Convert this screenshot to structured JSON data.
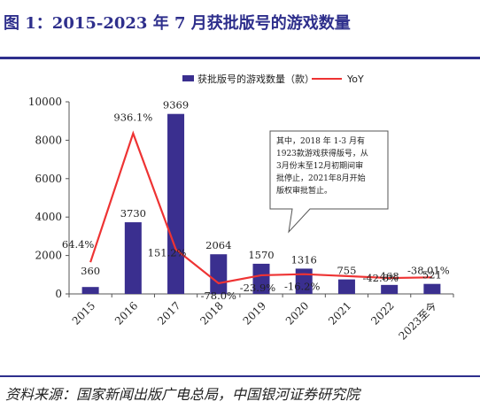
{
  "figure": {
    "title": "图 1：2015-2023 年 7 月获批版号的游戏数量",
    "source": "资料来源：国家新闻出版广电总局，中国银河证券研究院"
  },
  "callout": {
    "lines": [
      "其中，2018 年 1-3 月有",
      "1923款游戏获得版号，从",
      "3月份末至12月初期间审",
      "批停止，2021年8月开始",
      "版权审批暂止。"
    ]
  },
  "chart_data": {
    "type": "bar",
    "categories": [
      "2015",
      "2016",
      "2017",
      "2018",
      "2019",
      "2020",
      "2021",
      "2022",
      "2023至今"
    ],
    "ylim": [
      0,
      10000
    ],
    "yticks": [
      0,
      2000,
      4000,
      6000,
      8000,
      10000
    ],
    "series": [
      {
        "name": "获批版号的游戏数量（款）",
        "kind": "bar",
        "color": "#3a2f8f",
        "values": [
          360,
          3730,
          9369,
          2064,
          1570,
          1316,
          755,
          468,
          521
        ],
        "labels": [
          "360",
          "3730",
          "9369",
          "2064",
          "1570",
          "1316",
          "755",
          "468",
          "521"
        ]
      },
      {
        "name": "YoY",
        "kind": "line",
        "color": "#ee3333",
        "values": [
          64.4,
          936.1,
          151.2,
          -78.0,
          -23.9,
          -16.2,
          null,
          -42.6,
          -38.01
        ],
        "labels": [
          "64.4%",
          "936.1%",
          "151.2%",
          "-78.0%",
          "-23.9%",
          "-16.2%",
          "",
          "-42.6%",
          "-38.01%"
        ]
      }
    ]
  }
}
